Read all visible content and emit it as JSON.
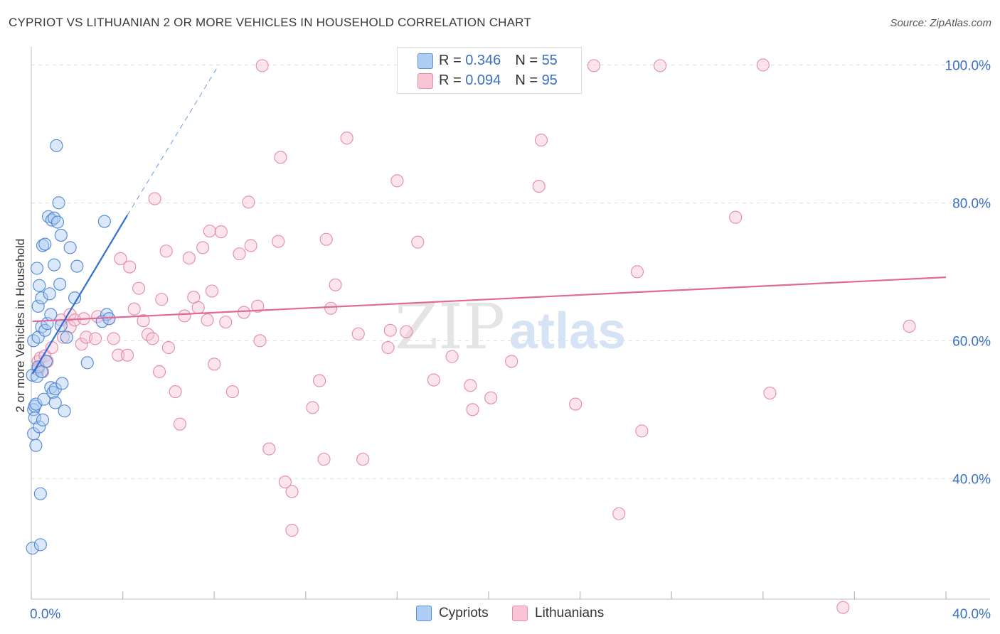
{
  "title": "CYPRIOT VS LITHUANIAN 2 OR MORE VEHICLES IN HOUSEHOLD CORRELATION CHART",
  "source": "Source: ZipAtlas.com",
  "watermark": {
    "zip": "ZIP",
    "atlas": "atlas"
  },
  "legend": {
    "cypriot": {
      "r_label": "R =",
      "r_value": "0.346",
      "n_label": "N =",
      "n_value": "55",
      "fill": "#aecdf5",
      "stroke": "#5b8fd6"
    },
    "lithuanian": {
      "r_label": "R =",
      "r_value": "0.094",
      "n_label": "N =",
      "n_value": "95",
      "fill": "#f9c4d4",
      "stroke": "#e58aa8"
    }
  },
  "bottom_legend": {
    "cypriots": "Cypriots",
    "lithuanians": "Lithuanians"
  },
  "colors": {
    "cypriot_point_fill": "rgba(174,205,245,0.45)",
    "cypriot_point_stroke": "#4f86d3",
    "cypriot_line": "#2f6fd0",
    "lithuanian_point_fill": "rgba(249,196,212,0.45)",
    "lithuanian_point_stroke": "#e38aa8",
    "lithuanian_line": "#e0699a",
    "tick_label": "#3a6fc4",
    "grid": "#dedede"
  },
  "chart_data": {
    "type": "scatter",
    "title": "CYPRIOT VS LITHUANIAN 2 OR MORE VEHICLES IN HOUSEHOLD CORRELATION CHART",
    "xlabel": "",
    "ylabel": "2 or more Vehicles in Household",
    "xlim": [
      0,
      40
    ],
    "ylim": [
      22.5,
      102
    ],
    "x_tick_labels": [
      {
        "value": 0,
        "label": "0.0%"
      },
      {
        "value": 40,
        "label": "40.0%"
      }
    ],
    "y_tick_labels": [
      {
        "value": 100,
        "label": "100.0%"
      },
      {
        "value": 80,
        "label": "80.0%"
      },
      {
        "value": 60,
        "label": "60.0%"
      },
      {
        "value": 40,
        "label": "40.0%"
      }
    ],
    "y_grid": [
      100,
      80,
      60,
      40
    ],
    "series": [
      {
        "name": "Cypriots",
        "r": 0.346,
        "n": 55,
        "trend": {
          "x0": 0.05,
          "y0": 55.2,
          "x1": 4.2,
          "y1": 78.2,
          "dash_x1": 8.2,
          "dash_y1": 100
        },
        "points": [
          [
            0.05,
            29.9
          ],
          [
            0.05,
            55.0
          ],
          [
            0.1,
            50.0
          ],
          [
            0.1,
            60.0
          ],
          [
            0.1,
            46.5
          ],
          [
            0.15,
            50.5
          ],
          [
            0.15,
            48.8
          ],
          [
            0.2,
            50.8
          ],
          [
            0.2,
            44.8
          ],
          [
            0.25,
            54.8
          ],
          [
            0.25,
            70.5
          ],
          [
            0.3,
            56.2
          ],
          [
            0.3,
            60.5
          ],
          [
            0.3,
            65.0
          ],
          [
            0.35,
            68.0
          ],
          [
            0.35,
            47.5
          ],
          [
            0.4,
            30.4
          ],
          [
            0.4,
            37.8
          ],
          [
            0.45,
            55.5
          ],
          [
            0.45,
            66.2
          ],
          [
            0.45,
            62.0
          ],
          [
            0.5,
            73.8
          ],
          [
            0.5,
            48.5
          ],
          [
            0.55,
            51.5
          ],
          [
            0.6,
            74.0
          ],
          [
            0.6,
            61.5
          ],
          [
            0.65,
            57.0
          ],
          [
            0.7,
            62.5
          ],
          [
            0.75,
            78.0
          ],
          [
            0.8,
            66.8
          ],
          [
            0.85,
            63.8
          ],
          [
            0.85,
            53.2
          ],
          [
            0.9,
            77.5
          ],
          [
            0.95,
            52.5
          ],
          [
            1.0,
            77.8
          ],
          [
            1.0,
            71.0
          ],
          [
            1.05,
            53.0
          ],
          [
            1.05,
            51.0
          ],
          [
            1.1,
            88.3
          ],
          [
            1.15,
            77.2
          ],
          [
            1.2,
            80.0
          ],
          [
            1.25,
            68.2
          ],
          [
            1.3,
            62.2
          ],
          [
            1.3,
            75.3
          ],
          [
            1.35,
            53.8
          ],
          [
            1.45,
            49.8
          ],
          [
            1.7,
            73.5
          ],
          [
            1.9,
            66.2
          ],
          [
            2.0,
            70.8
          ],
          [
            2.45,
            56.8
          ],
          [
            3.1,
            62.8
          ],
          [
            3.2,
            77.3
          ],
          [
            3.3,
            63.8
          ],
          [
            3.4,
            63.2
          ],
          [
            1.55,
            60.5
          ]
        ]
      },
      {
        "name": "Lithuanians",
        "r": 0.094,
        "n": 95,
        "trend": {
          "x0": 0.05,
          "y0": 62.8,
          "x1": 40.0,
          "y1": 69.2
        },
        "points": [
          [
            0.3,
            56.0
          ],
          [
            0.3,
            57.0
          ],
          [
            0.3,
            55.8
          ],
          [
            0.4,
            57.5
          ],
          [
            0.5,
            55.5
          ],
          [
            0.6,
            57.8
          ],
          [
            0.7,
            57.0
          ],
          [
            0.9,
            59.0
          ],
          [
            1.3,
            63.0
          ],
          [
            1.4,
            60.5
          ],
          [
            1.7,
            62.0
          ],
          [
            1.7,
            63.8
          ],
          [
            1.9,
            63.0
          ],
          [
            2.2,
            59.5
          ],
          [
            2.3,
            63.2
          ],
          [
            2.4,
            60.5
          ],
          [
            2.8,
            60.3
          ],
          [
            2.9,
            63.5
          ],
          [
            3.4,
            63.2
          ],
          [
            3.6,
            60.3
          ],
          [
            3.8,
            57.9
          ],
          [
            3.9,
            71.9
          ],
          [
            4.2,
            57.9
          ],
          [
            4.3,
            70.7
          ],
          [
            4.5,
            64.6
          ],
          [
            4.7,
            67.6
          ],
          [
            4.9,
            62.9
          ],
          [
            5.1,
            60.9
          ],
          [
            5.3,
            60.3
          ],
          [
            5.4,
            80.6
          ],
          [
            5.6,
            55.5
          ],
          [
            5.7,
            66.0
          ],
          [
            5.9,
            73.0
          ],
          [
            6.0,
            59.0
          ],
          [
            6.3,
            52.6
          ],
          [
            6.5,
            47.9
          ],
          [
            6.7,
            63.6
          ],
          [
            6.9,
            72.0
          ],
          [
            7.1,
            66.3
          ],
          [
            7.3,
            64.8
          ],
          [
            7.5,
            73.5
          ],
          [
            7.7,
            63.0
          ],
          [
            7.8,
            75.9
          ],
          [
            7.9,
            67.2
          ],
          [
            8.0,
            56.6
          ],
          [
            8.3,
            75.8
          ],
          [
            8.5,
            62.7
          ],
          [
            8.8,
            52.6
          ],
          [
            9.1,
            72.6
          ],
          [
            9.3,
            64.1
          ],
          [
            9.5,
            80.1
          ],
          [
            9.6,
            73.8
          ],
          [
            9.9,
            65.0
          ],
          [
            10.0,
            60.0
          ],
          [
            10.1,
            99.9
          ],
          [
            10.4,
            44.3
          ],
          [
            10.8,
            74.4
          ],
          [
            10.9,
            86.6
          ],
          [
            11.1,
            39.5
          ],
          [
            11.4,
            32.5
          ],
          [
            11.4,
            38.1
          ],
          [
            12.3,
            50.3
          ],
          [
            12.6,
            54.2
          ],
          [
            12.8,
            42.8
          ],
          [
            12.9,
            74.7
          ],
          [
            13.1,
            64.7
          ],
          [
            13.3,
            68.1
          ],
          [
            13.8,
            89.4
          ],
          [
            14.3,
            61.0
          ],
          [
            14.5,
            42.8
          ],
          [
            15.6,
            59.0
          ],
          [
            15.7,
            61.5
          ],
          [
            16.0,
            83.2
          ],
          [
            16.4,
            61.3
          ],
          [
            16.9,
            74.3
          ],
          [
            17.6,
            54.3
          ],
          [
            17.8,
            100.2
          ],
          [
            18.4,
            57.7
          ],
          [
            19.2,
            53.5
          ],
          [
            19.3,
            50.0
          ],
          [
            20.1,
            51.7
          ],
          [
            21.0,
            57.0
          ],
          [
            22.2,
            82.4
          ],
          [
            22.3,
            89.1
          ],
          [
            23.8,
            50.8
          ],
          [
            24.6,
            99.9
          ],
          [
            25.7,
            34.9
          ],
          [
            26.5,
            70.0
          ],
          [
            26.7,
            46.9
          ],
          [
            27.5,
            99.9
          ],
          [
            30.8,
            77.9
          ],
          [
            32.0,
            100.0
          ],
          [
            32.3,
            52.4
          ],
          [
            35.5,
            21.3
          ],
          [
            38.4,
            62.1
          ]
        ]
      }
    ]
  }
}
